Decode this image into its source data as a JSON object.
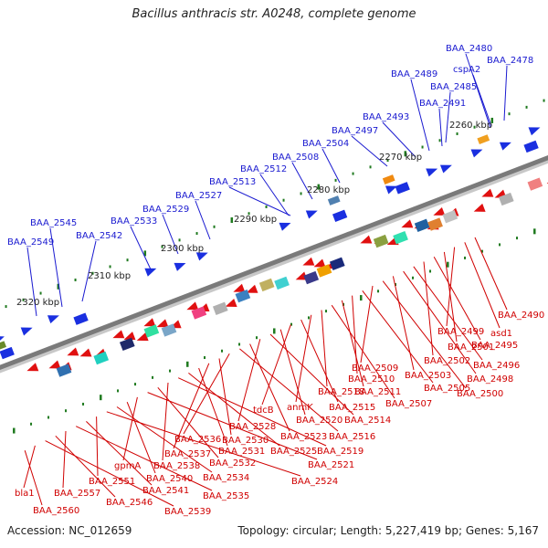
{
  "title": "Bacillus anthracis str. A0248, complete genome",
  "accession": "Accession: NC_012659",
  "summary": "Topology: circular; Length: 5,227,419 bp; Genes: 5,167",
  "scale_labels": [
    "2260 kbp",
    "2270 kbp",
    "2280 kbp",
    "2290 kbp",
    "2300 kbp",
    "2310 kbp",
    "2320 kbp"
  ],
  "top_gene_labels": [
    "BAA_2480",
    "cspA2",
    "BAA_2478",
    "BAA_2489",
    "BAA_2485",
    "BAA_2491",
    "BAA_2493",
    "BAA_2497",
    "BAA_2504",
    "BAA_2508",
    "BAA_2512",
    "BAA_2513",
    "BAA_2527",
    "BAA_2529",
    "BAA_2533",
    "BAA_2545",
    "BAA_2542",
    "BAA_2549"
  ],
  "bottom_gene_labels": [
    "BAA_2490",
    "asd1",
    "BAA_2499",
    "BAA_2501",
    "BAA_2495",
    "BAA_2502",
    "BAA_2496",
    "BAA_2498",
    "BAA_2503",
    "BAA_2500",
    "BAA_2509",
    "BAA_2505",
    "BAA_2510",
    "BAA_2511",
    "BAA_2507",
    "BAA_2518",
    "anmK",
    "BAA_2515",
    "tdcB",
    "BAA_2520",
    "BAA_2514",
    "BAA_2528",
    "BAA_2523",
    "BAA_2516",
    "BAA_2536",
    "BAA_2530",
    "BAA_2537",
    "BAA_2531",
    "BAA_2525",
    "BAA_2519",
    "BAA_2538",
    "BAA_2532",
    "BAA_2521",
    "gpmA",
    "BAA_2540",
    "BAA_2534",
    "BAA_2524",
    "BAA_2551",
    "BAA_2541",
    "BAA_2535",
    "BAA_2557",
    "BAA_2546",
    "BAA_2539",
    "bla1",
    "BAA_2560"
  ],
  "colors": {
    "top_label": "#1a1ad0",
    "bottom_label": "#d00000",
    "backbone": "#7a7a7a",
    "tick": "#1f7a1f",
    "forward": "#1a2fe0",
    "reverse": "#e01010"
  },
  "icons": {
    "forward_arrow": "blue-gene-arrow",
    "reverse_arrow": "red-gene-arrow"
  }
}
